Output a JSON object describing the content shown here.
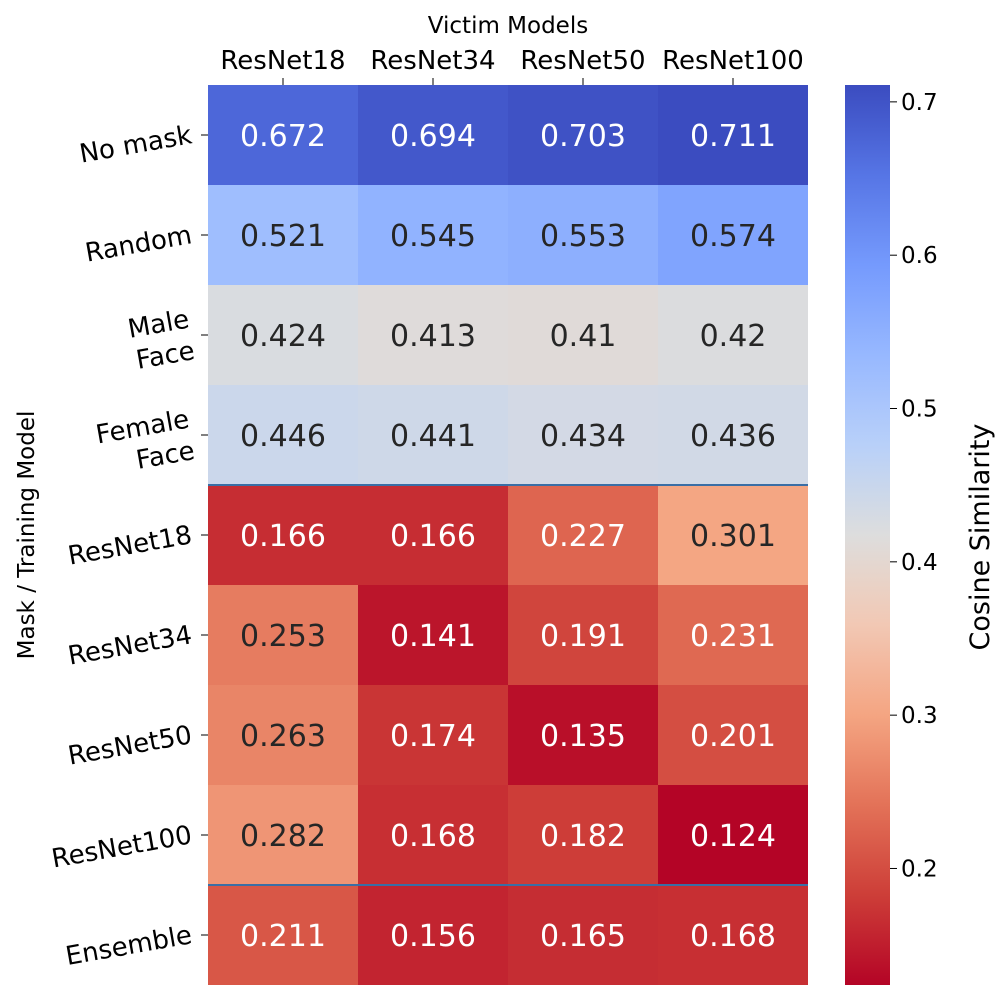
{
  "chart_data": {
    "type": "heatmap",
    "title": "",
    "xlabel": "Victim Models",
    "ylabel": "Mask / Training Model",
    "x_categories": [
      "ResNet18",
      "ResNet34",
      "ResNet50",
      "ResNet100"
    ],
    "y_categories": [
      "No mask",
      "Random",
      "Male\nFace",
      "Female\nFace",
      "ResNet18",
      "ResNet34",
      "ResNet50",
      "ResNet100",
      "Ensemble"
    ],
    "values": [
      [
        0.672,
        0.694,
        0.703,
        0.711
      ],
      [
        0.521,
        0.545,
        0.553,
        0.574
      ],
      [
        0.424,
        0.413,
        0.41,
        0.42
      ],
      [
        0.446,
        0.441,
        0.434,
        0.436
      ],
      [
        0.166,
        0.166,
        0.227,
        0.301
      ],
      [
        0.253,
        0.141,
        0.191,
        0.231
      ],
      [
        0.263,
        0.174,
        0.135,
        0.201
      ],
      [
        0.282,
        0.168,
        0.182,
        0.124
      ],
      [
        0.211,
        0.156,
        0.165,
        0.168
      ]
    ],
    "value_labels": [
      [
        "0.672",
        "0.694",
        "0.703",
        "0.711"
      ],
      [
        "0.521",
        "0.545",
        "0.553",
        "0.574"
      ],
      [
        "0.424",
        "0.413",
        "0.41",
        "0.42"
      ],
      [
        "0.446",
        "0.441",
        "0.434",
        "0.436"
      ],
      [
        "0.166",
        "0.166",
        "0.227",
        "0.301"
      ],
      [
        "0.253",
        "0.141",
        "0.191",
        "0.231"
      ],
      [
        "0.263",
        "0.174",
        "0.135",
        "0.201"
      ],
      [
        "0.282",
        "0.168",
        "0.182",
        "0.124"
      ],
      [
        "0.211",
        "0.156",
        "0.165",
        "0.168"
      ]
    ],
    "row_separators_after": [
      3,
      7
    ],
    "colormap": "coolwarm_r",
    "vmin": 0.124,
    "vmax": 0.711,
    "colorbar": {
      "label": "Cosine Similarity",
      "ticks": [
        0.2,
        0.3,
        0.4,
        0.5,
        0.6,
        0.7
      ],
      "tick_labels": [
        "0.2",
        "0.3",
        "0.4",
        "0.5",
        "0.6",
        "0.7"
      ]
    },
    "separator_color": "#3a6ea5",
    "x_ticks_position": "top"
  }
}
